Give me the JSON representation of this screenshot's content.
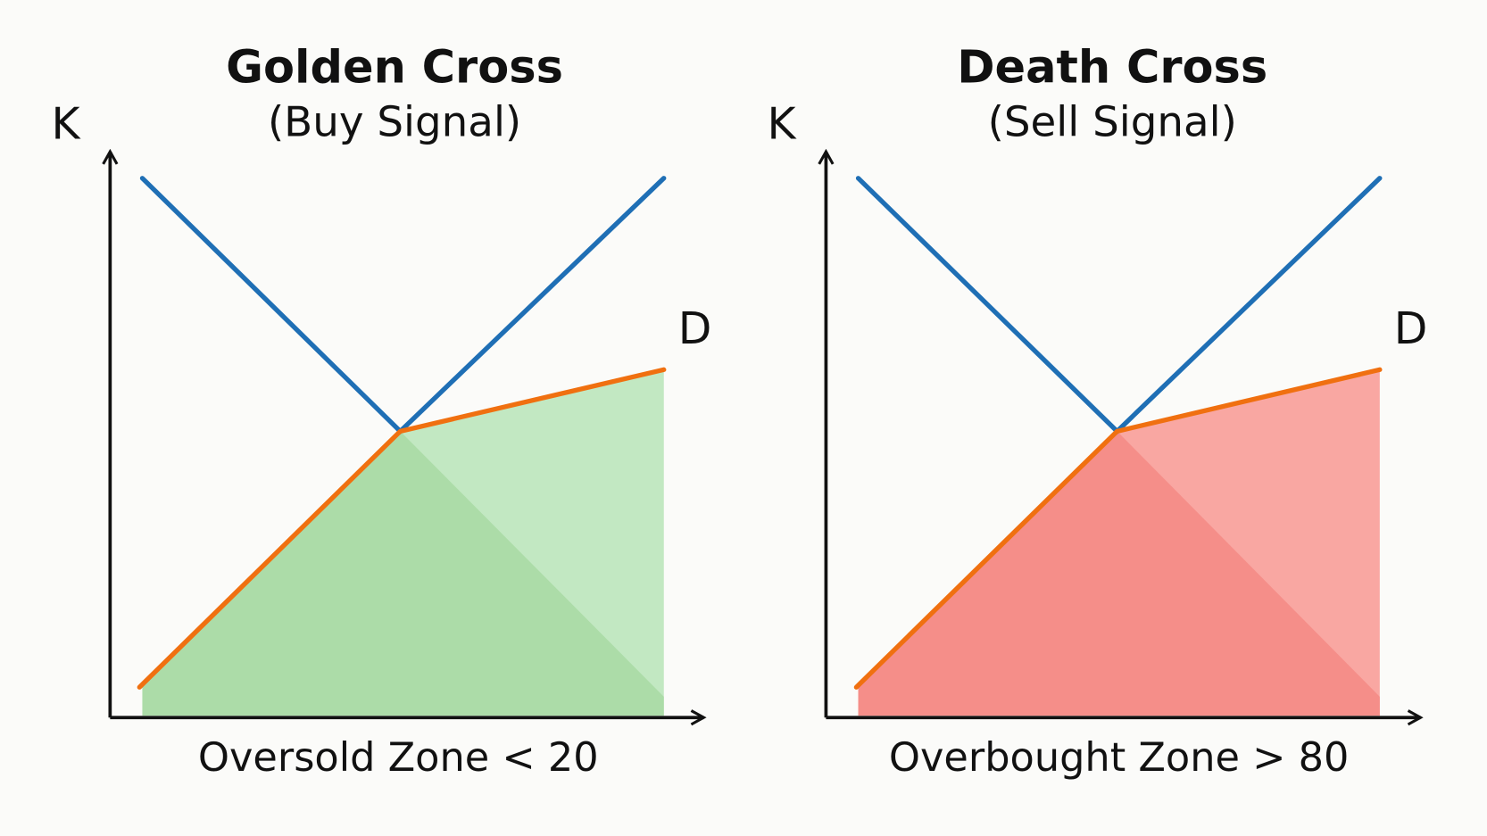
{
  "panels": [
    {
      "title": "Golden Cross",
      "subtitle": "(Buy Signal)",
      "y_label": "K",
      "line_label": "D",
      "caption": "Oversold Zone < 20"
    },
    {
      "title": "Death Cross",
      "subtitle": "(Sell Signal)",
      "y_label": "K",
      "line_label": "D",
      "caption": "Overbought Zone > 80"
    }
  ]
}
